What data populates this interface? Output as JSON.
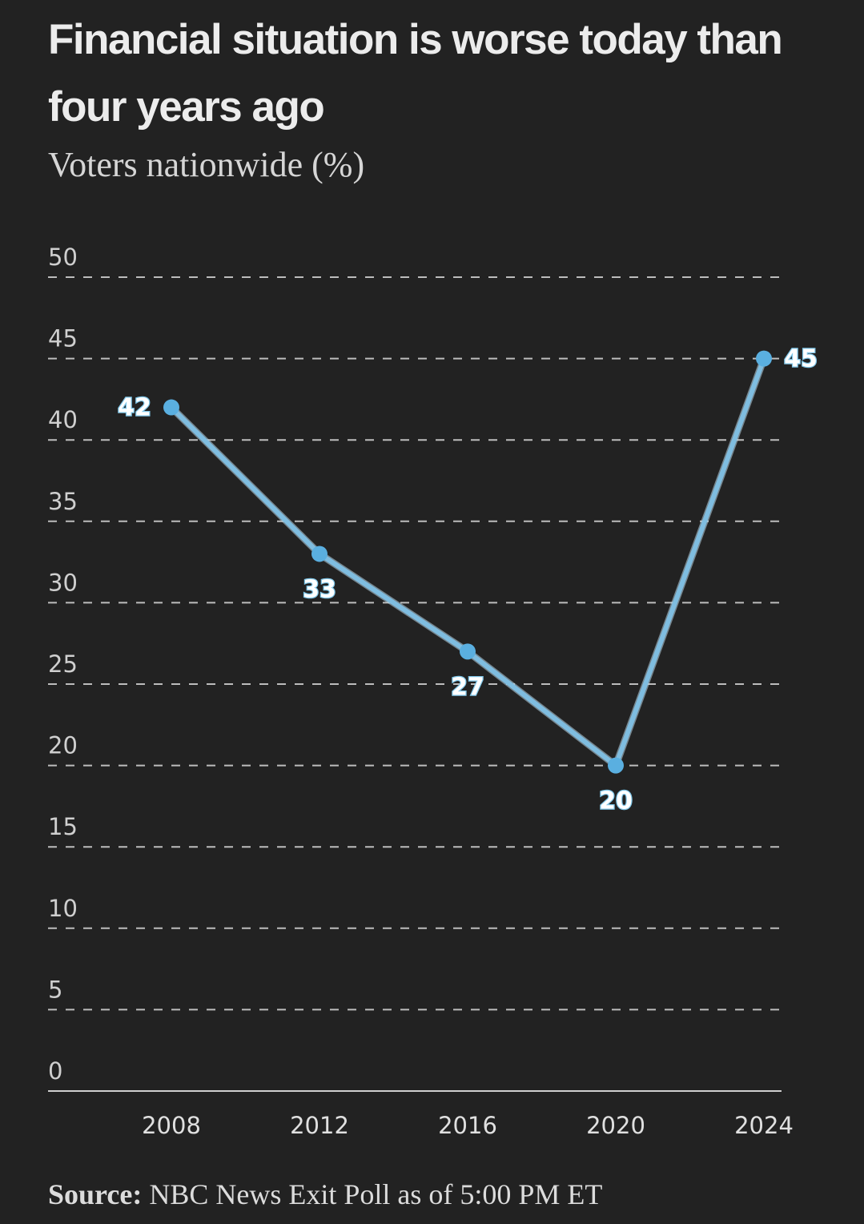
{
  "header": {
    "title": "Financial situation is worse today than four years ago",
    "subtitle": "Voters nationwide (%)"
  },
  "footer": {
    "source_label": "Source:",
    "source_text": "NBC News Exit Poll as of 5:00 PM ET"
  },
  "colors": {
    "background": "#222222",
    "line": "#7fbde0",
    "marker": "#5aafe0",
    "label_outline": "#7fc6e8",
    "grid": "#d9d9d9"
  },
  "chart_data": {
    "type": "line",
    "title": "Financial situation is worse today than four years ago",
    "subtitle": "Voters nationwide (%)",
    "xlabel": "",
    "ylabel": "",
    "categories": [
      "2008",
      "2012",
      "2016",
      "2020",
      "2024"
    ],
    "series": [
      {
        "values": [
          42,
          33,
          27,
          20,
          45
        ]
      }
    ],
    "data_labels": [
      "42",
      "33",
      "27",
      "20",
      "45"
    ],
    "ylim": [
      0,
      50
    ],
    "yticks": [
      0,
      5,
      10,
      15,
      20,
      25,
      30,
      35,
      40,
      45,
      50
    ],
    "grid": "horizontal dashed",
    "legend": "none"
  }
}
